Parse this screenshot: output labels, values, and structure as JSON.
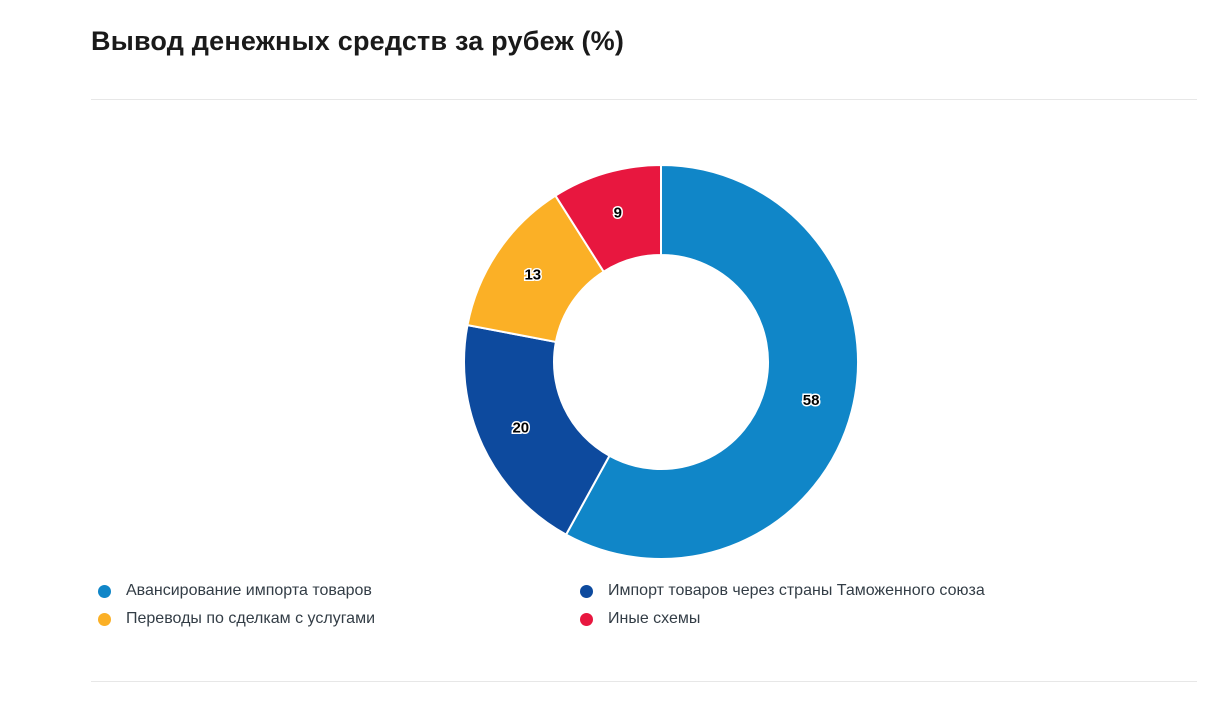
{
  "page": {
    "title": "Вывод денежных средств за рубеж (%)"
  },
  "chart_data": {
    "type": "pie",
    "variant": "donut",
    "title": "Вывод денежных средств за рубеж (%)",
    "unit": "%",
    "start_angle_deg": 0,
    "direction": "clockwise",
    "inner_radius_ratio": 0.543,
    "legend_position": "bottom",
    "segments": [
      {
        "label": "Авансирование импорта товаров",
        "value": 58,
        "color": "#1086c8"
      },
      {
        "label": "Импорт товаров через страны Таможенного союза",
        "value": 20,
        "color": "#0d4a9e"
      },
      {
        "label": "Переводы по сделкам с услугами",
        "value": 13,
        "color": "#fbb026"
      },
      {
        "label": "Иные схемы",
        "value": 9,
        "color": "#e8173f"
      }
    ],
    "value_labels": {
      "color": "#000000",
      "outline_color": "#ffffff",
      "position": "inside-ring"
    },
    "separator_color": "#ffffff"
  }
}
